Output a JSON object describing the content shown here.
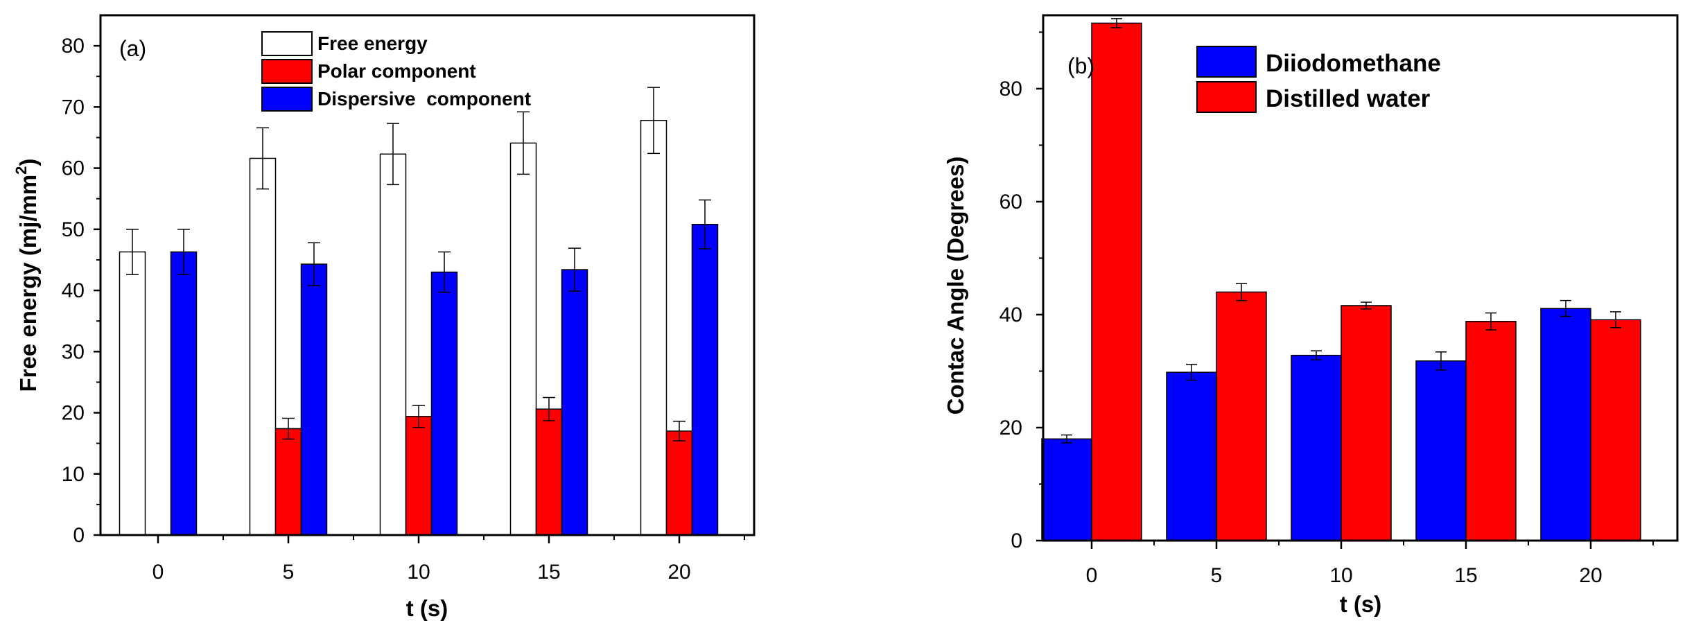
{
  "chart_data": [
    {
      "type": "bar",
      "panel_label": "(a)",
      "title": "",
      "xlabel": "t (s)",
      "ylabel": "Free energy (mj/mm",
      "ylabel_superscript": "2",
      "ylabel_close": ")",
      "ylim": [
        0,
        85
      ],
      "yticks": [
        0,
        10,
        20,
        30,
        40,
        50,
        60,
        70,
        80
      ],
      "categories": [
        "0",
        "5",
        "10",
        "15",
        "20"
      ],
      "legend_position": "top-center",
      "series": [
        {
          "name": "Free energy",
          "color": "#ffffff",
          "values": [
            46.3,
            61.6,
            62.3,
            64.1,
            67.8
          ],
          "errors": [
            3.7,
            5.0,
            5.0,
            5.1,
            5.4
          ]
        },
        {
          "name": "Polar component",
          "color": "#ff0000",
          "values": [
            0,
            17.4,
            19.4,
            20.6,
            17.0
          ],
          "errors": [
            0,
            1.7,
            1.8,
            1.9,
            1.6
          ]
        },
        {
          "name": "Dispersive  component",
          "color": "#0000ff",
          "values": [
            46.3,
            44.3,
            43.0,
            43.4,
            50.8
          ],
          "errors": [
            3.7,
            3.5,
            3.3,
            3.5,
            4.0
          ]
        }
      ]
    },
    {
      "type": "bar",
      "panel_label": "(b)",
      "title": "",
      "xlabel": "t (s)",
      "ylabel": "Contac Angle (Degrees)",
      "ylim": [
        0,
        93
      ],
      "yticks": [
        0,
        20,
        40,
        60,
        80
      ],
      "categories": [
        "0",
        "5",
        "10",
        "15",
        "20"
      ],
      "legend_position": "top-right",
      "series": [
        {
          "name": "Diiodomethane",
          "color": "#0000ff",
          "values": [
            18.0,
            29.8,
            32.8,
            31.8,
            41.1
          ],
          "errors": [
            0.7,
            1.4,
            0.8,
            1.6,
            1.4
          ]
        },
        {
          "name": "Distilled water",
          "color": "#ff0000",
          "values": [
            91.6,
            44.0,
            41.6,
            38.8,
            39.1
          ],
          "errors": [
            0.8,
            1.5,
            0.6,
            1.5,
            1.4
          ]
        }
      ]
    }
  ]
}
